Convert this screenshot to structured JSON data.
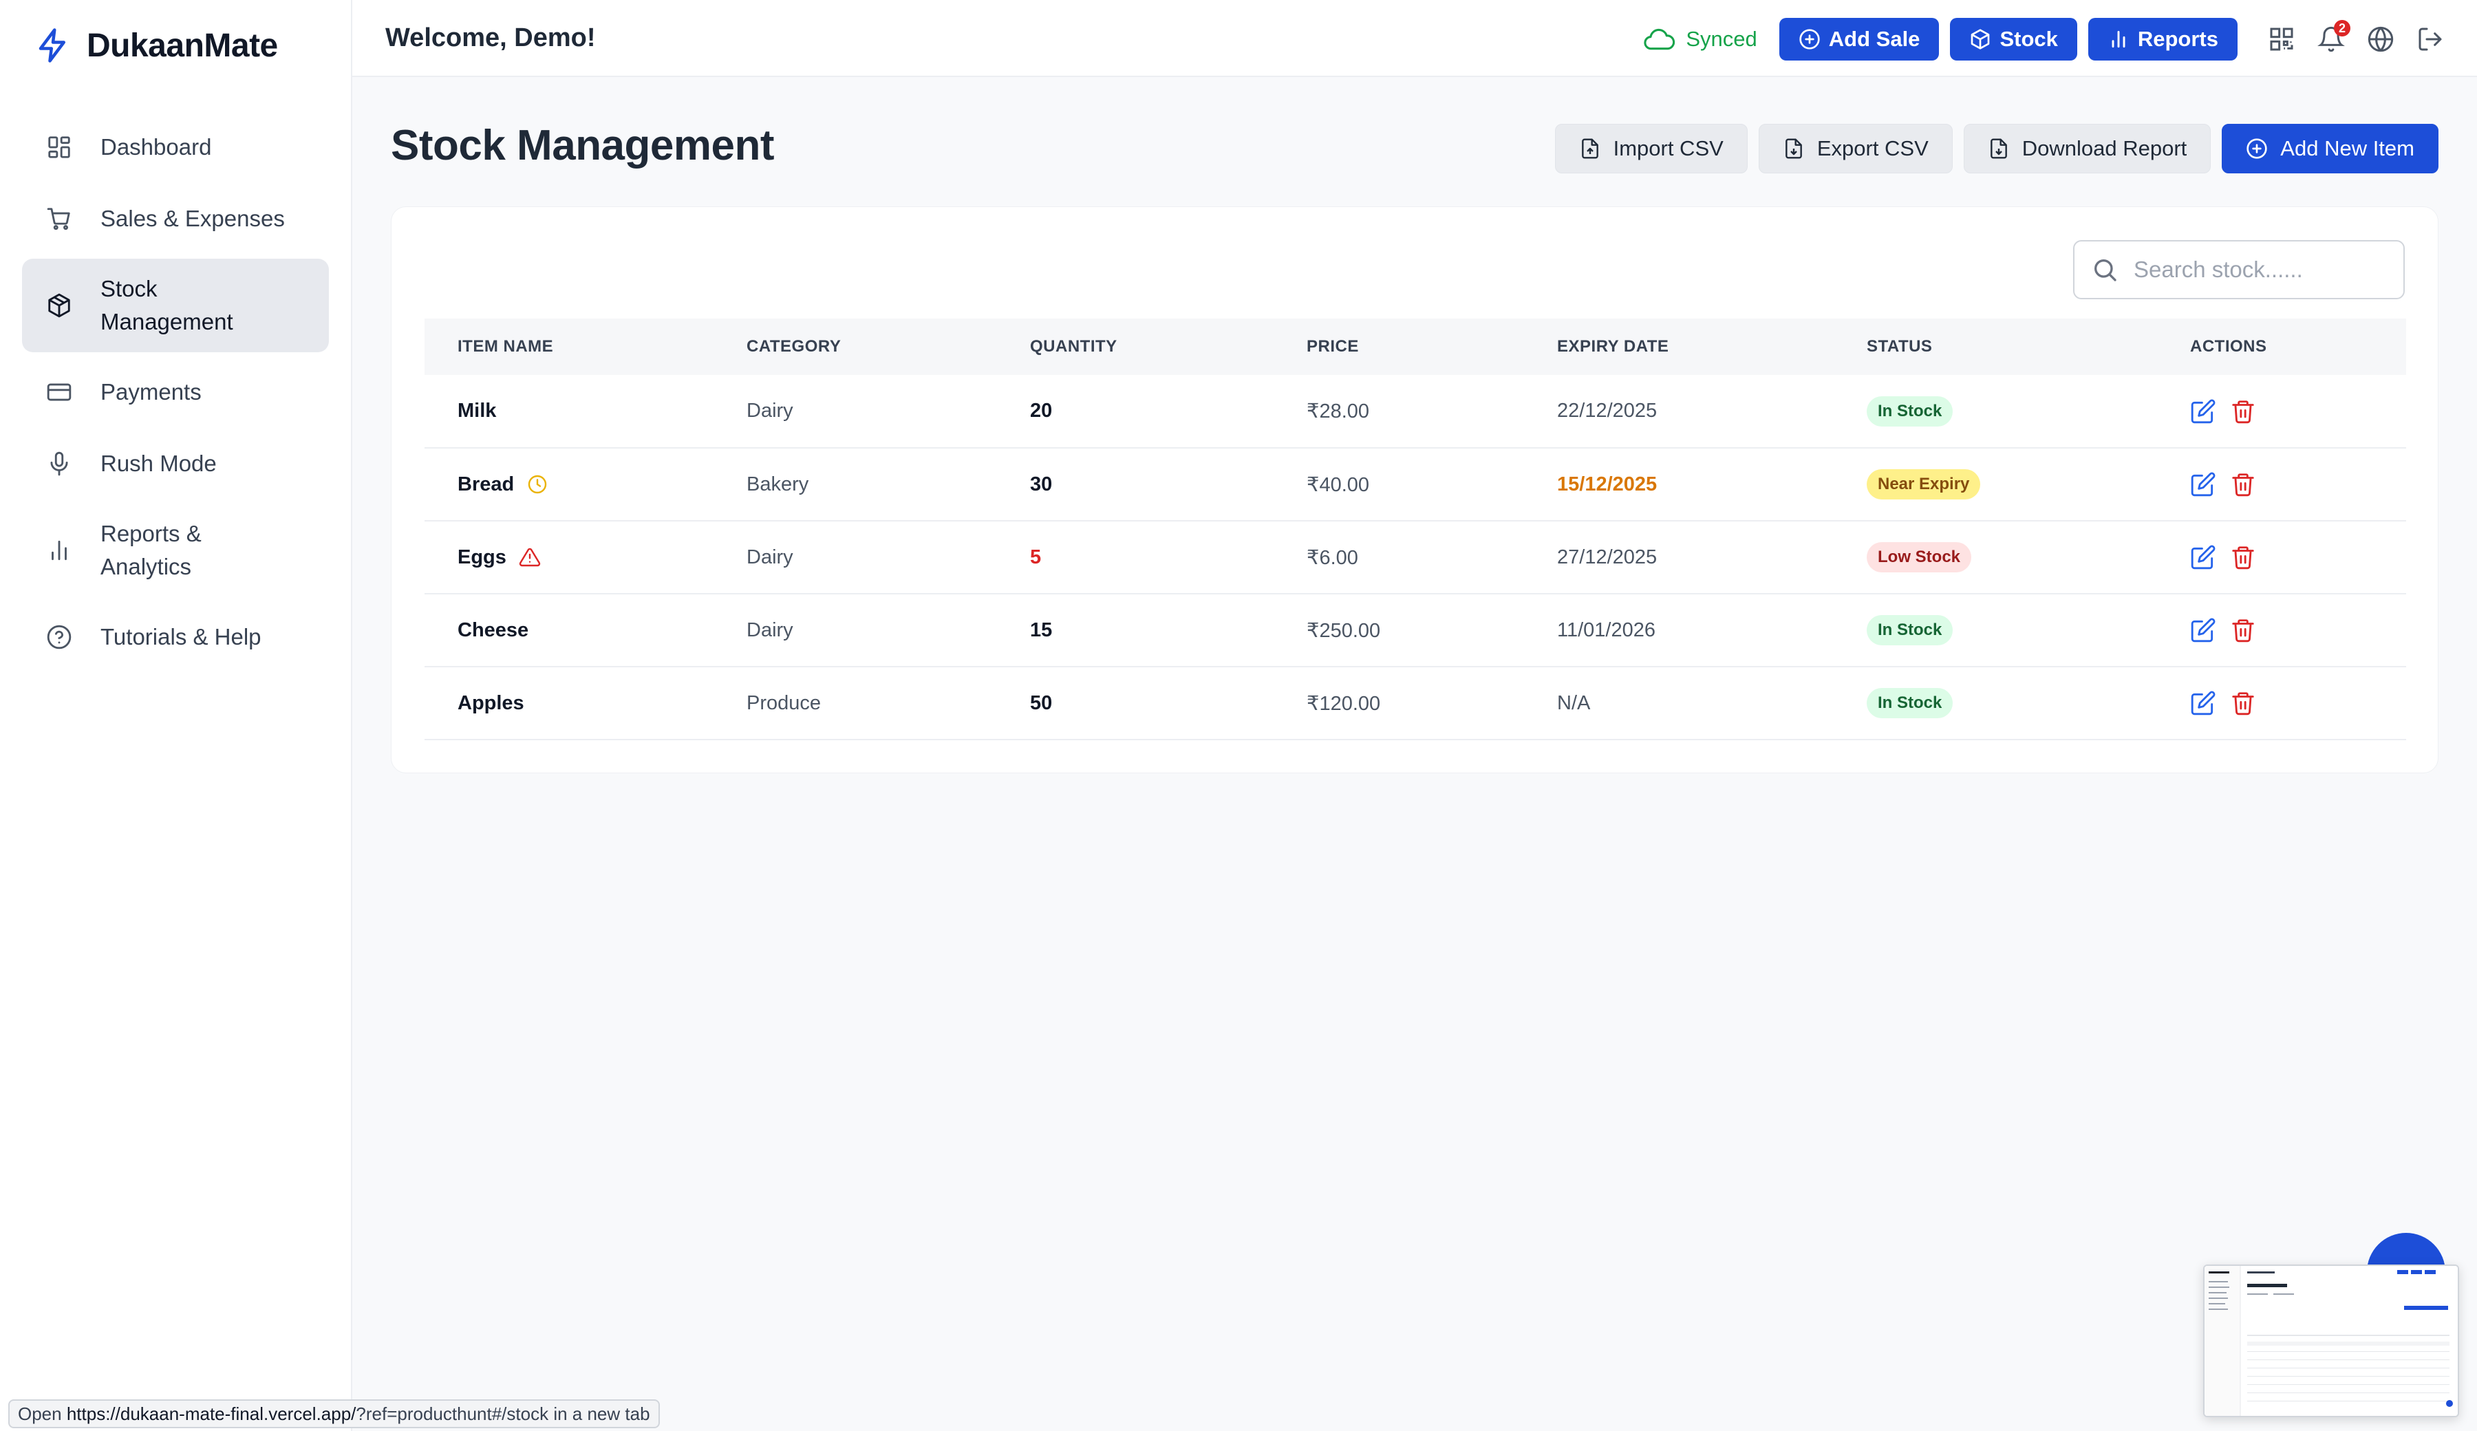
{
  "brand": {
    "name": "DukaanMate"
  },
  "sidebar": {
    "items": [
      {
        "label": "Dashboard",
        "icon": "dashboard-grid-icon"
      },
      {
        "label": "Sales & Expenses",
        "icon": "cart-icon"
      },
      {
        "label": "Stock Management",
        "icon": "box-icon",
        "active": true
      },
      {
        "label": "Payments",
        "icon": "credit-card-icon"
      },
      {
        "label": "Rush Mode",
        "icon": "microphone-icon"
      },
      {
        "label": "Reports & Analytics",
        "icon": "bar-chart-icon"
      },
      {
        "label": "Tutorials & Help",
        "icon": "help-circle-icon"
      }
    ]
  },
  "header": {
    "welcome": "Welcome, Demo!",
    "sync_status": "Synced",
    "buttons": {
      "add_sale": "Add Sale",
      "stock": "Stock",
      "reports": "Reports"
    },
    "notification_count": "2"
  },
  "page": {
    "title": "Stock Management",
    "actions": {
      "import_csv": "Import CSV",
      "export_csv": "Export CSV",
      "download_report": "Download Report",
      "add_new_item": "Add New Item"
    },
    "search": {
      "placeholder": "Search stock......",
      "value": ""
    }
  },
  "table": {
    "headers": [
      "ITEM NAME",
      "CATEGORY",
      "QUANTITY",
      "PRICE",
      "EXPIRY DATE",
      "STATUS",
      "ACTIONS"
    ],
    "rows": [
      {
        "name": "Milk",
        "category": "Dairy",
        "quantity": "20",
        "price": "₹28.00",
        "expiry": "22/12/2025",
        "status": "In Stock"
      },
      {
        "name": "Bread",
        "category": "Bakery",
        "quantity": "30",
        "price": "₹40.00",
        "expiry": "15/12/2025",
        "status": "Near Expiry"
      },
      {
        "name": "Eggs",
        "category": "Dairy",
        "quantity": "5",
        "price": "₹6.00",
        "expiry": "27/12/2025",
        "status": "Low Stock"
      },
      {
        "name": "Cheese",
        "category": "Dairy",
        "quantity": "15",
        "price": "₹250.00",
        "expiry": "11/01/2026",
        "status": "In Stock"
      },
      {
        "name": "Apples",
        "category": "Produce",
        "quantity": "50",
        "price": "₹120.00",
        "expiry": "N/A",
        "status": "In Stock"
      }
    ]
  },
  "status_bar": {
    "prefix": "Open",
    "url": "https://dukaan-mate-final.vercel.app/",
    "url_rest": "?ref=producthunt#/stock",
    "suffix": "in a new tab"
  },
  "colors": {
    "primary": "#1d4ed8",
    "synced": "#16a34a",
    "danger": "#dc2626",
    "warning": "#d97706"
  }
}
